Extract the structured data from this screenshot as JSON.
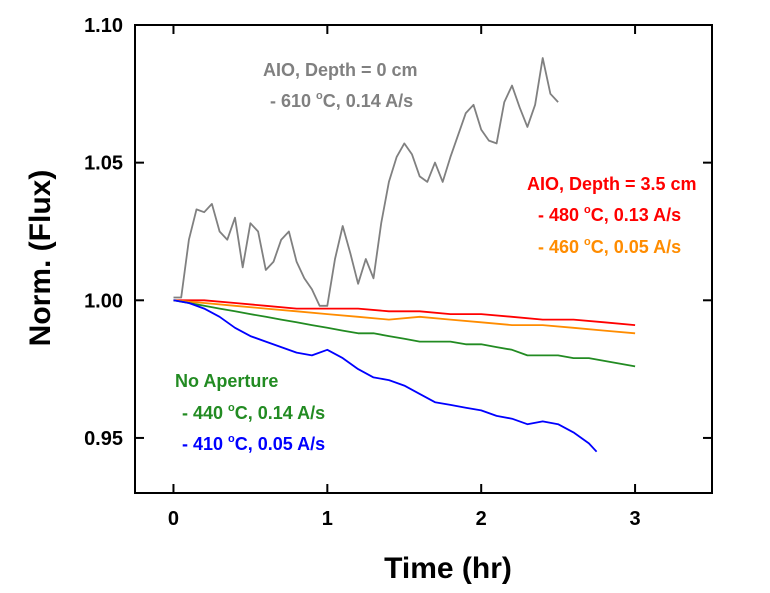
{
  "chart_data": {
    "type": "line",
    "xlabel": "Time (hr)",
    "ylabel": "Norm. (Flux)",
    "xlim": [
      -0.25,
      3.5
    ],
    "ylim": [
      0.93,
      1.1
    ],
    "x_ticks": [
      "0",
      "1",
      "2",
      "3"
    ],
    "x_tick_values": [
      0,
      1,
      2,
      3
    ],
    "y_ticks": [
      "0.95",
      "1.00",
      "1.05",
      "1.10"
    ],
    "y_tick_values": [
      0.95,
      1.0,
      1.05,
      1.1
    ],
    "grid": false,
    "annotations": [
      {
        "id": "aio0-head",
        "lines": [
          "AIO, Depth = 0 cm"
        ],
        "color": "#808080"
      },
      {
        "id": "aio0-s1",
        "lines": [
          "- 610 ",
          "o",
          "C, 0.14 A/s"
        ],
        "color": "#808080"
      },
      {
        "id": "aio35-head",
        "lines": [
          "AIO, Depth = 3.5 cm"
        ],
        "color": "#ff0000"
      },
      {
        "id": "aio35-s1",
        "lines": [
          "- 480 ",
          "o",
          "C, 0.13 A/s"
        ],
        "color": "#ff0000"
      },
      {
        "id": "aio35-s2",
        "lines": [
          "- 460 ",
          "o",
          "C, 0.05 A/s"
        ],
        "color": "#ff8c00"
      },
      {
        "id": "noap-head",
        "lines": [
          "No Aperture"
        ],
        "color": "#228b22"
      },
      {
        "id": "noap-s1",
        "lines": [
          "- 440 ",
          "o",
          "C, 0.14 A/s"
        ],
        "color": "#228b22"
      },
      {
        "id": "noap-s2",
        "lines": [
          "- 410 ",
          "o",
          "C, 0.05 A/s"
        ],
        "color": "#0000ff"
      }
    ],
    "series": [
      {
        "id": "aio0-610",
        "color": "#808080",
        "x": [
          0.0,
          0.05,
          0.1,
          0.15,
          0.2,
          0.25,
          0.3,
          0.35,
          0.4,
          0.45,
          0.5,
          0.55,
          0.6,
          0.65,
          0.7,
          0.75,
          0.8,
          0.85,
          0.9,
          0.95,
          1.0,
          1.05,
          1.1,
          1.15,
          1.2,
          1.25,
          1.3,
          1.35,
          1.4,
          1.45,
          1.5,
          1.55,
          1.6,
          1.65,
          1.7,
          1.75,
          1.8,
          1.85,
          1.9,
          1.95,
          2.0,
          2.05,
          2.1,
          2.15,
          2.2,
          2.25,
          2.3,
          2.35,
          2.4,
          2.45,
          2.5
        ],
        "y": [
          1.001,
          1.001,
          1.022,
          1.033,
          1.032,
          1.035,
          1.025,
          1.022,
          1.03,
          1.012,
          1.028,
          1.025,
          1.011,
          1.014,
          1.022,
          1.025,
          1.014,
          1.008,
          1.004,
          0.998,
          0.998,
          1.015,
          1.027,
          1.017,
          1.006,
          1.015,
          1.008,
          1.028,
          1.043,
          1.052,
          1.057,
          1.053,
          1.045,
          1.043,
          1.05,
          1.043,
          1.052,
          1.06,
          1.068,
          1.071,
          1.062,
          1.058,
          1.057,
          1.072,
          1.078,
          1.07,
          1.063,
          1.071,
          1.088,
          1.075,
          1.072
        ]
      },
      {
        "id": "aio35-480",
        "color": "#ff0000",
        "x": [
          0.0,
          0.2,
          0.4,
          0.6,
          0.8,
          1.0,
          1.2,
          1.4,
          1.6,
          1.8,
          2.0,
          2.2,
          2.4,
          2.6,
          2.8,
          3.0
        ],
        "y": [
          1.0,
          1.0,
          0.999,
          0.998,
          0.997,
          0.997,
          0.997,
          0.996,
          0.996,
          0.995,
          0.995,
          0.994,
          0.993,
          0.993,
          0.992,
          0.991
        ]
      },
      {
        "id": "aio35-460",
        "color": "#ff8c00",
        "x": [
          0.0,
          0.2,
          0.4,
          0.6,
          0.8,
          1.0,
          1.2,
          1.4,
          1.6,
          1.8,
          2.0,
          2.2,
          2.4,
          2.6,
          2.8,
          3.0
        ],
        "y": [
          1.0,
          0.999,
          0.998,
          0.997,
          0.996,
          0.995,
          0.994,
          0.993,
          0.994,
          0.993,
          0.992,
          0.991,
          0.991,
          0.99,
          0.989,
          0.988
        ]
      },
      {
        "id": "noap-440",
        "color": "#228b22",
        "x": [
          0.0,
          0.1,
          0.2,
          0.3,
          0.4,
          0.5,
          0.6,
          0.7,
          0.8,
          0.9,
          1.0,
          1.1,
          1.2,
          1.3,
          1.4,
          1.5,
          1.6,
          1.7,
          1.8,
          1.9,
          2.0,
          2.1,
          2.2,
          2.3,
          2.4,
          2.5,
          2.6,
          2.7,
          2.8,
          2.9,
          3.0
        ],
        "y": [
          1.0,
          0.999,
          0.998,
          0.997,
          0.996,
          0.995,
          0.994,
          0.993,
          0.992,
          0.991,
          0.99,
          0.989,
          0.988,
          0.988,
          0.987,
          0.986,
          0.985,
          0.985,
          0.985,
          0.984,
          0.984,
          0.983,
          0.982,
          0.98,
          0.98,
          0.98,
          0.979,
          0.979,
          0.978,
          0.977,
          0.976
        ]
      },
      {
        "id": "noap-410",
        "color": "#0000ff",
        "x": [
          0.0,
          0.1,
          0.2,
          0.3,
          0.4,
          0.5,
          0.6,
          0.7,
          0.8,
          0.9,
          1.0,
          1.1,
          1.2,
          1.3,
          1.4,
          1.5,
          1.6,
          1.7,
          1.8,
          1.9,
          2.0,
          2.1,
          2.2,
          2.3,
          2.4,
          2.5,
          2.6,
          2.7,
          2.75
        ],
        "y": [
          1.0,
          0.999,
          0.997,
          0.994,
          0.99,
          0.987,
          0.985,
          0.983,
          0.981,
          0.98,
          0.982,
          0.979,
          0.975,
          0.972,
          0.971,
          0.969,
          0.966,
          0.963,
          0.962,
          0.961,
          0.96,
          0.958,
          0.957,
          0.955,
          0.956,
          0.955,
          0.952,
          0.948,
          0.945
        ]
      }
    ]
  }
}
